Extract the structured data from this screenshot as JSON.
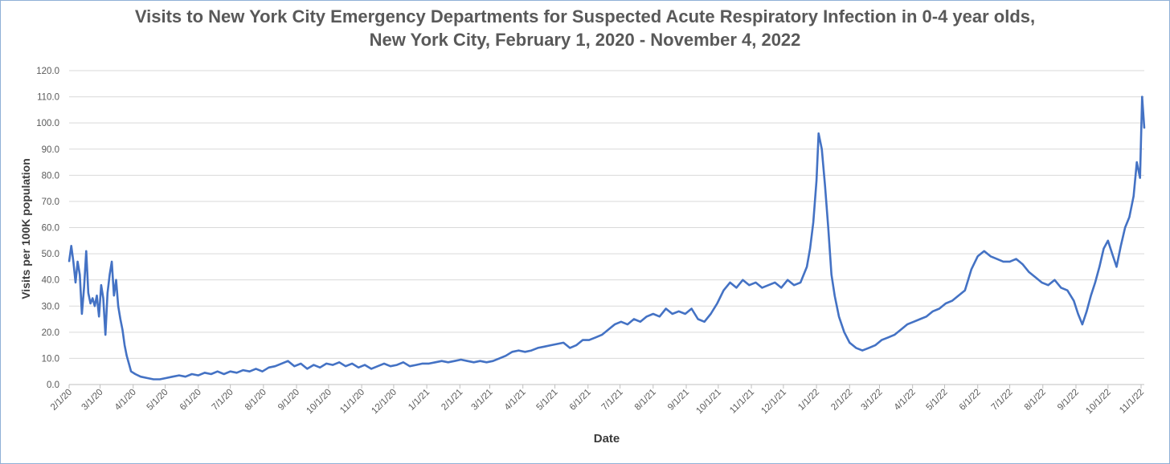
{
  "chart_data": {
    "type": "line",
    "title": "Visits to New York City Emergency Departments for Suspected Acute Respiratory Infection in 0-4 year olds,",
    "subtitle": "New York City, February 1, 2020 - November 4, 2022",
    "xlabel": "Date",
    "ylabel": "Visits per 100K population",
    "ylim": [
      0,
      120
    ],
    "yticks": [
      "0.0",
      "10.0",
      "20.0",
      "30.0",
      "40.0",
      "50.0",
      "60.0",
      "70.0",
      "80.0",
      "90.0",
      "100.0",
      "110.0",
      "120.0"
    ],
    "xlim": [
      "2020-02-01",
      "2022-11-04"
    ],
    "xticks": [
      {
        "date": "2020-02-01",
        "label": "2/1/20"
      },
      {
        "date": "2020-03-01",
        "label": "3/1/20"
      },
      {
        "date": "2020-04-01",
        "label": "4/1/20"
      },
      {
        "date": "2020-05-01",
        "label": "5/1/20"
      },
      {
        "date": "2020-06-01",
        "label": "6/1/20"
      },
      {
        "date": "2020-07-01",
        "label": "7/1/20"
      },
      {
        "date": "2020-08-01",
        "label": "8/1/20"
      },
      {
        "date": "2020-09-01",
        "label": "9/1/20"
      },
      {
        "date": "2020-10-01",
        "label": "10/1/20"
      },
      {
        "date": "2020-11-01",
        "label": "11/1/20"
      },
      {
        "date": "2020-12-01",
        "label": "12/1/20"
      },
      {
        "date": "2021-01-01",
        "label": "1/1/21"
      },
      {
        "date": "2021-02-01",
        "label": "2/1/21"
      },
      {
        "date": "2021-03-01",
        "label": "3/1/21"
      },
      {
        "date": "2021-04-01",
        "label": "4/1/21"
      },
      {
        "date": "2021-05-01",
        "label": "5/1/21"
      },
      {
        "date": "2021-06-01",
        "label": "6/1/21"
      },
      {
        "date": "2021-07-01",
        "label": "7/1/21"
      },
      {
        "date": "2021-08-01",
        "label": "8/1/21"
      },
      {
        "date": "2021-09-01",
        "label": "9/1/21"
      },
      {
        "date": "2021-10-01",
        "label": "10/1/21"
      },
      {
        "date": "2021-11-01",
        "label": "11/1/21"
      },
      {
        "date": "2021-12-01",
        "label": "12/1/21"
      },
      {
        "date": "2022-01-01",
        "label": "1/1/22"
      },
      {
        "date": "2022-02-01",
        "label": "2/1/22"
      },
      {
        "date": "2022-03-01",
        "label": "3/1/22"
      },
      {
        "date": "2022-04-01",
        "label": "4/1/22"
      },
      {
        "date": "2022-05-01",
        "label": "5/1/22"
      },
      {
        "date": "2022-06-01",
        "label": "6/1/22"
      },
      {
        "date": "2022-07-01",
        "label": "7/1/22"
      },
      {
        "date": "2022-08-01",
        "label": "8/1/22"
      },
      {
        "date": "2022-09-01",
        "label": "9/1/22"
      },
      {
        "date": "2022-10-01",
        "label": "10/1/22"
      },
      {
        "date": "2022-11-01",
        "label": "11/1/22"
      }
    ],
    "grid": true,
    "color": "#4472c4",
    "series": [
      {
        "points": [
          [
            "2020-02-01",
            47
          ],
          [
            "2020-02-03",
            53
          ],
          [
            "2020-02-05",
            47
          ],
          [
            "2020-02-07",
            39
          ],
          [
            "2020-02-09",
            47
          ],
          [
            "2020-02-11",
            42
          ],
          [
            "2020-02-13",
            27
          ],
          [
            "2020-02-15",
            37
          ],
          [
            "2020-02-17",
            51
          ],
          [
            "2020-02-19",
            35
          ],
          [
            "2020-02-21",
            31
          ],
          [
            "2020-02-23",
            33
          ],
          [
            "2020-02-25",
            30
          ],
          [
            "2020-02-27",
            34
          ],
          [
            "2020-02-29",
            26
          ],
          [
            "2020-03-02",
            38
          ],
          [
            "2020-03-04",
            33
          ],
          [
            "2020-03-06",
            19
          ],
          [
            "2020-03-08",
            35
          ],
          [
            "2020-03-10",
            42
          ],
          [
            "2020-03-12",
            47
          ],
          [
            "2020-03-14",
            34
          ],
          [
            "2020-03-16",
            40
          ],
          [
            "2020-03-18",
            30
          ],
          [
            "2020-03-20",
            25
          ],
          [
            "2020-03-22",
            21
          ],
          [
            "2020-03-24",
            15
          ],
          [
            "2020-03-26",
            11
          ],
          [
            "2020-03-28",
            8
          ],
          [
            "2020-03-30",
            5
          ],
          [
            "2020-04-03",
            4
          ],
          [
            "2020-04-08",
            3
          ],
          [
            "2020-04-14",
            2.5
          ],
          [
            "2020-04-20",
            2
          ],
          [
            "2020-04-26",
            2
          ],
          [
            "2020-05-02",
            2.5
          ],
          [
            "2020-05-08",
            3
          ],
          [
            "2020-05-14",
            3.5
          ],
          [
            "2020-05-20",
            3
          ],
          [
            "2020-05-26",
            4
          ],
          [
            "2020-06-01",
            3.5
          ],
          [
            "2020-06-07",
            4.5
          ],
          [
            "2020-06-13",
            4
          ],
          [
            "2020-06-19",
            5
          ],
          [
            "2020-06-25",
            4
          ],
          [
            "2020-07-01",
            5
          ],
          [
            "2020-07-07",
            4.5
          ],
          [
            "2020-07-13",
            5.5
          ],
          [
            "2020-07-19",
            5
          ],
          [
            "2020-07-25",
            6
          ],
          [
            "2020-07-31",
            5
          ],
          [
            "2020-08-06",
            6.5
          ],
          [
            "2020-08-12",
            7
          ],
          [
            "2020-08-18",
            8
          ],
          [
            "2020-08-24",
            9
          ],
          [
            "2020-08-30",
            7
          ],
          [
            "2020-09-05",
            8
          ],
          [
            "2020-09-11",
            6
          ],
          [
            "2020-09-17",
            7.5
          ],
          [
            "2020-09-23",
            6.5
          ],
          [
            "2020-09-29",
            8
          ],
          [
            "2020-10-05",
            7.5
          ],
          [
            "2020-10-11",
            8.5
          ],
          [
            "2020-10-17",
            7
          ],
          [
            "2020-10-23",
            8
          ],
          [
            "2020-10-29",
            6.5
          ],
          [
            "2020-11-04",
            7.5
          ],
          [
            "2020-11-10",
            6
          ],
          [
            "2020-11-16",
            7
          ],
          [
            "2020-11-22",
            8
          ],
          [
            "2020-11-28",
            7
          ],
          [
            "2020-12-04",
            7.5
          ],
          [
            "2020-12-10",
            8.5
          ],
          [
            "2020-12-16",
            7
          ],
          [
            "2020-12-22",
            7.5
          ],
          [
            "2020-12-28",
            8
          ],
          [
            "2021-01-03",
            8
          ],
          [
            "2021-01-09",
            8.5
          ],
          [
            "2021-01-15",
            9
          ],
          [
            "2021-01-21",
            8.5
          ],
          [
            "2021-01-27",
            9
          ],
          [
            "2021-02-02",
            9.5
          ],
          [
            "2021-02-08",
            9
          ],
          [
            "2021-02-14",
            8.5
          ],
          [
            "2021-02-20",
            9
          ],
          [
            "2021-02-26",
            8.5
          ],
          [
            "2021-03-04",
            9
          ],
          [
            "2021-03-10",
            10
          ],
          [
            "2021-03-16",
            11
          ],
          [
            "2021-03-22",
            12.5
          ],
          [
            "2021-03-28",
            13
          ],
          [
            "2021-04-03",
            12.5
          ],
          [
            "2021-04-09",
            13
          ],
          [
            "2021-04-15",
            14
          ],
          [
            "2021-04-21",
            14.5
          ],
          [
            "2021-04-27",
            15
          ],
          [
            "2021-05-03",
            15.5
          ],
          [
            "2021-05-09",
            16
          ],
          [
            "2021-05-15",
            14
          ],
          [
            "2021-05-21",
            15
          ],
          [
            "2021-05-27",
            17
          ],
          [
            "2021-06-02",
            17
          ],
          [
            "2021-06-08",
            18
          ],
          [
            "2021-06-14",
            19
          ],
          [
            "2021-06-20",
            21
          ],
          [
            "2021-06-26",
            23
          ],
          [
            "2021-07-02",
            24
          ],
          [
            "2021-07-08",
            23
          ],
          [
            "2021-07-14",
            25
          ],
          [
            "2021-07-20",
            24
          ],
          [
            "2021-07-26",
            26
          ],
          [
            "2021-08-01",
            27
          ],
          [
            "2021-08-07",
            26
          ],
          [
            "2021-08-13",
            29
          ],
          [
            "2021-08-19",
            27
          ],
          [
            "2021-08-25",
            28
          ],
          [
            "2021-08-31",
            27
          ],
          [
            "2021-09-06",
            29
          ],
          [
            "2021-09-12",
            25
          ],
          [
            "2021-09-18",
            24
          ],
          [
            "2021-09-24",
            27
          ],
          [
            "2021-09-30",
            31
          ],
          [
            "2021-10-06",
            36
          ],
          [
            "2021-10-12",
            39
          ],
          [
            "2021-10-18",
            37
          ],
          [
            "2021-10-24",
            40
          ],
          [
            "2021-10-30",
            38
          ],
          [
            "2021-11-05",
            39
          ],
          [
            "2021-11-11",
            37
          ],
          [
            "2021-11-17",
            38
          ],
          [
            "2021-11-23",
            39
          ],
          [
            "2021-11-29",
            37
          ],
          [
            "2021-12-05",
            40
          ],
          [
            "2021-12-11",
            38
          ],
          [
            "2021-12-17",
            39
          ],
          [
            "2021-12-23",
            45
          ],
          [
            "2021-12-26",
            52
          ],
          [
            "2021-12-29",
            62
          ],
          [
            "2022-01-01",
            78
          ],
          [
            "2022-01-03",
            96
          ],
          [
            "2022-01-06",
            90
          ],
          [
            "2022-01-09",
            76
          ],
          [
            "2022-01-12",
            60
          ],
          [
            "2022-01-15",
            42
          ],
          [
            "2022-01-18",
            34
          ],
          [
            "2022-01-22",
            26
          ],
          [
            "2022-01-27",
            20
          ],
          [
            "2022-02-01",
            16
          ],
          [
            "2022-02-07",
            14
          ],
          [
            "2022-02-13",
            13
          ],
          [
            "2022-02-19",
            14
          ],
          [
            "2022-02-25",
            15
          ],
          [
            "2022-03-03",
            17
          ],
          [
            "2022-03-09",
            18
          ],
          [
            "2022-03-15",
            19
          ],
          [
            "2022-03-21",
            21
          ],
          [
            "2022-03-27",
            23
          ],
          [
            "2022-04-02",
            24
          ],
          [
            "2022-04-08",
            25
          ],
          [
            "2022-04-14",
            26
          ],
          [
            "2022-04-20",
            28
          ],
          [
            "2022-04-26",
            29
          ],
          [
            "2022-05-02",
            31
          ],
          [
            "2022-05-08",
            32
          ],
          [
            "2022-05-14",
            34
          ],
          [
            "2022-05-20",
            36
          ],
          [
            "2022-05-26",
            44
          ],
          [
            "2022-06-01",
            49
          ],
          [
            "2022-06-07",
            51
          ],
          [
            "2022-06-13",
            49
          ],
          [
            "2022-06-19",
            48
          ],
          [
            "2022-06-25",
            47
          ],
          [
            "2022-07-01",
            47
          ],
          [
            "2022-07-07",
            48
          ],
          [
            "2022-07-13",
            46
          ],
          [
            "2022-07-19",
            43
          ],
          [
            "2022-07-25",
            41
          ],
          [
            "2022-07-31",
            39
          ],
          [
            "2022-08-06",
            38
          ],
          [
            "2022-08-12",
            40
          ],
          [
            "2022-08-18",
            37
          ],
          [
            "2022-08-24",
            36
          ],
          [
            "2022-08-30",
            32
          ],
          [
            "2022-09-03",
            27
          ],
          [
            "2022-09-07",
            23
          ],
          [
            "2022-09-11",
            28
          ],
          [
            "2022-09-15",
            34
          ],
          [
            "2022-09-19",
            39
          ],
          [
            "2022-09-23",
            45
          ],
          [
            "2022-09-27",
            52
          ],
          [
            "2022-10-01",
            55
          ],
          [
            "2022-10-05",
            50
          ],
          [
            "2022-10-09",
            45
          ],
          [
            "2022-10-13",
            53
          ],
          [
            "2022-10-17",
            60
          ],
          [
            "2022-10-21",
            64
          ],
          [
            "2022-10-25",
            72
          ],
          [
            "2022-10-28",
            85
          ],
          [
            "2022-10-31",
            79
          ],
          [
            "2022-11-02",
            110
          ],
          [
            "2022-11-04",
            98
          ]
        ]
      }
    ]
  }
}
